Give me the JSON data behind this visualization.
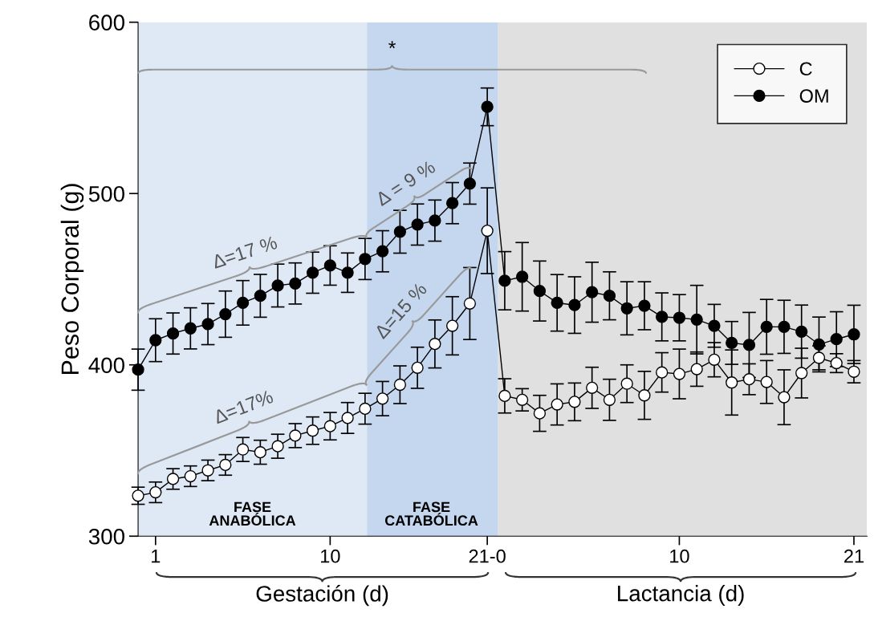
{
  "chart_data": {
    "type": "line",
    "ylabel": "Peso Corporal (g)",
    "categories": [
      null,
      "1",
      null,
      null,
      null,
      null,
      null,
      null,
      null,
      null,
      null,
      "10",
      null,
      null,
      null,
      null,
      null,
      null,
      null,
      null,
      "21-0",
      null,
      null,
      null,
      null,
      null,
      null,
      null,
      null,
      null,
      null,
      "10",
      null,
      null,
      null,
      null,
      null,
      null,
      null,
      null,
      null,
      "21"
    ],
    "series": [
      {
        "name": "C",
        "color": "#ffffff",
        "values": [
          323.6,
          325.6,
          333.4,
          335,
          338.4,
          341.6,
          350.6,
          349,
          352.5,
          358.7,
          361.6,
          364.2,
          369,
          374.4,
          380.3,
          388.4,
          398.3,
          412.2,
          422.8,
          435.8,
          478.3,
          381.9,
          379.6,
          371.7,
          376.9,
          378.4,
          386.6,
          379.6,
          389,
          382.2,
          395.6,
          394.7,
          397.5,
          403,
          389.7,
          391.6,
          390,
          381.1,
          395.2,
          404.1,
          401,
          396
        ],
        "errors": [
          5,
          6,
          6,
          6,
          6,
          6,
          7,
          7,
          7,
          7,
          8,
          8,
          9,
          9,
          10,
          11,
          12,
          14,
          17,
          21,
          25,
          10,
          6.5,
          10.5,
          12,
          11,
          12,
          12,
          11,
          14,
          11.5,
          14.5,
          10,
          10,
          19,
          9,
          12.5,
          16,
          14.5,
          7,
          5.5,
          6.5
        ]
      },
      {
        "name": "OM",
        "color": "#000000",
        "values": [
          397.2,
          414.4,
          418.3,
          421.3,
          423.8,
          429.6,
          436.2,
          440.3,
          446.3,
          447.5,
          453.8,
          458,
          453.8,
          461.8,
          466.3,
          477.7,
          481.9,
          484.2,
          494.4,
          505.8,
          550.6,
          449.1,
          451.4,
          443.1,
          436.2,
          434.9,
          442.4,
          440.3,
          433,
          434.5,
          428,
          427.5,
          426.4,
          422.8,
          412.8,
          411.6,
          422.2,
          422.2,
          419.4,
          411.9,
          415,
          417.8
        ],
        "errors": [
          12,
          12.5,
          12,
          12,
          12,
          13.5,
          13,
          12.5,
          12.5,
          12,
          12,
          11.5,
          11.5,
          12,
          12,
          12.5,
          12,
          12,
          12,
          12,
          11,
          17,
          20,
          17.5,
          16.5,
          16.5,
          17.5,
          14,
          15.5,
          14,
          14,
          13.5,
          20,
          12.5,
          12.5,
          19,
          16,
          15.5,
          15.5,
          16,
          16,
          17
        ]
      }
    ],
    "marker": "circle",
    "line_style": "solid",
    "ylim": [
      300,
      600
    ],
    "yticks": [
      300,
      400,
      500,
      600
    ],
    "annotations": [
      "*",
      "Δ=17 %",
      "Δ = 9 %",
      "Δ=17%",
      "Δ=15 %",
      "Gestación (d)",
      "Lactancia (d)",
      "FASE\nANABÓLICA",
      "FASE\nCATABÓLICA"
    ],
    "legend": "top right",
    "grid": false
  }
}
